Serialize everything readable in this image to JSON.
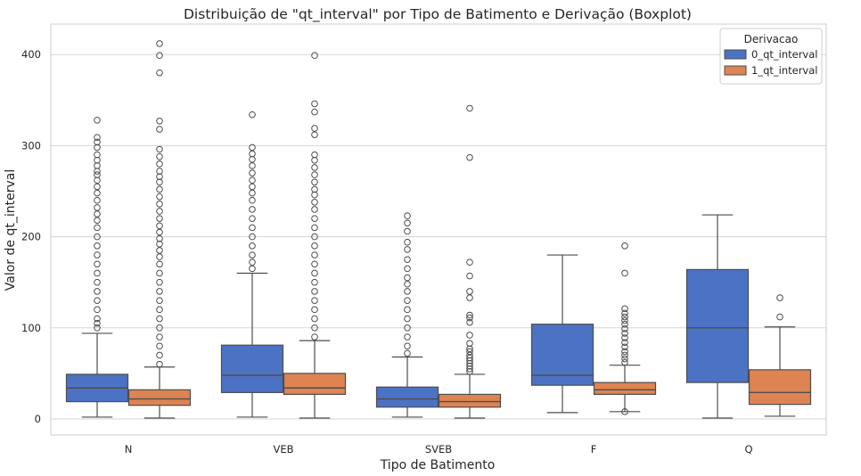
{
  "chart_data": {
    "type": "boxplot",
    "title": "Distribuição de \"qt_interval\" por Tipo de Batimento e Derivação (Boxplot)",
    "xlabel": "Tipo de Batimento",
    "ylabel": "Valor de qt_interval",
    "ylim": [
      -18,
      432
    ],
    "yticks": [
      0,
      100,
      200,
      300,
      400
    ],
    "categories": [
      "N",
      "VEB",
      "SVEB",
      "F",
      "Q"
    ],
    "grid": true,
    "legend": {
      "title": "Derivacao",
      "placement": "top-right"
    },
    "colors": {
      "background": "#ffffff",
      "grid": "#d5d5d5",
      "frame": "#cccccc",
      "line": "#4d4d4d",
      "text": "#262626"
    },
    "series": [
      {
        "name": "0_qt_interval",
        "color": "#4c72c4",
        "boxes": [
          {
            "category": "N",
            "whisker_low": 2,
            "q1": 19,
            "median": 34,
            "q3": 49,
            "whisker_high": 94,
            "outliers": [
              100,
              105,
              110,
              120,
              130,
              140,
              150,
              160,
              170,
              180,
              190,
              200,
              210,
              218,
              225,
              232,
              240,
              248,
              255,
              262,
              268,
              272,
              278,
              284,
              290,
              298,
              304,
              309,
              328
            ]
          },
          {
            "category": "VEB",
            "whisker_low": 2,
            "q1": 29,
            "median": 48,
            "q3": 81,
            "whisker_high": 160,
            "outliers": [
              165,
              172,
              180,
              190,
              200,
              210,
              220,
              230,
              240,
              248,
              255,
              262,
              270,
              278,
              285,
              291,
              298,
              334
            ]
          },
          {
            "category": "SVEB",
            "whisker_low": 2,
            "q1": 13,
            "median": 22,
            "q3": 35,
            "whisker_high": 68,
            "outliers": [
              72,
              80,
              90,
              100,
              110,
              120,
              130,
              140,
              148,
              155,
              165,
              175,
              186,
              194,
              206,
              215,
              223
            ]
          },
          {
            "category": "F",
            "whisker_low": 7,
            "q1": 37,
            "median": 48,
            "q3": 104,
            "whisker_high": 180,
            "outliers": []
          },
          {
            "category": "Q",
            "whisker_low": 1,
            "q1": 40,
            "median": 100,
            "q3": 164,
            "whisker_high": 224,
            "outliers": []
          }
        ]
      },
      {
        "name": "1_qt_interval",
        "color": "#dd8452",
        "boxes": [
          {
            "category": "N",
            "whisker_low": 1,
            "q1": 15,
            "median": 22,
            "q3": 32,
            "whisker_high": 57,
            "outliers": [
              60,
              70,
              80,
              90,
              100,
              110,
              120,
              130,
              140,
              150,
              160,
              170,
              178,
              185,
              192,
              198,
              205,
              212,
              220,
              228,
              236,
              244,
              252,
              260,
              266,
              272,
              280,
              288,
              296,
              318,
              327,
              380,
              399,
              412
            ]
          },
          {
            "category": "VEB",
            "whisker_low": 1,
            "q1": 27,
            "median": 34,
            "q3": 50,
            "whisker_high": 86,
            "outliers": [
              90,
              100,
              110,
              120,
              130,
              140,
              150,
              160,
              170,
              180,
              190,
              200,
              210,
              220,
              230,
              238,
              246,
              252,
              260,
              268,
              276,
              284,
              290,
              312,
              319,
              337,
              346,
              399
            ]
          },
          {
            "category": "SVEB",
            "whisker_low": 1,
            "q1": 13,
            "median": 19,
            "q3": 27,
            "whisker_high": 49,
            "outliers": [
              52,
              55,
              58,
              61,
              64,
              67,
              70,
              74,
              77,
              83,
              92,
              106,
              111,
              114,
              133,
              140,
              157,
              172,
              287,
              341
            ]
          },
          {
            "category": "F",
            "whisker_low": 8,
            "q1": 27,
            "median": 32,
            "q3": 40,
            "whisker_high": 59,
            "outliers": [
              8,
              62,
              66,
              70,
              74,
              79,
              84,
              89,
              94,
              99,
              104,
              108,
              112,
              116,
              121,
              160,
              190
            ]
          },
          {
            "category": "Q",
            "whisker_low": 3,
            "q1": 16,
            "median": 29,
            "q3": 54,
            "whisker_high": 101,
            "outliers": [
              112,
              133
            ]
          }
        ]
      }
    ]
  }
}
